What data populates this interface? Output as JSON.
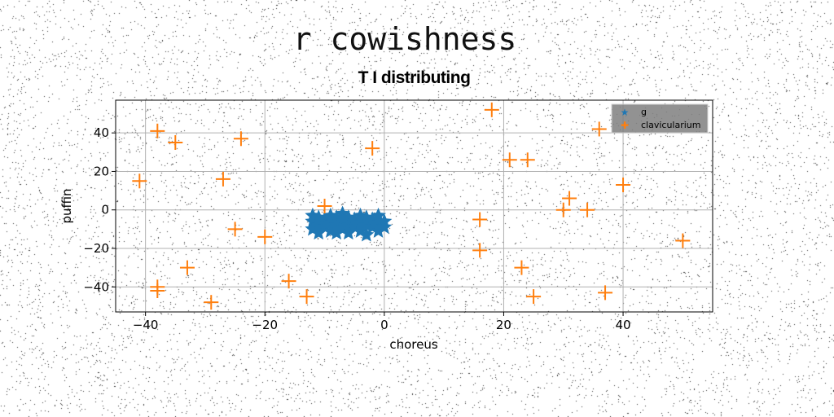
{
  "figure": {
    "suptitle": "r cowishness",
    "title": "T I distributing"
  },
  "chart_data": {
    "type": "scatter",
    "title": "T I distributing",
    "xlabel": "choreus",
    "ylabel": "puffin",
    "xlim": [
      -45,
      55
    ],
    "ylim": [
      -53,
      57
    ],
    "xticks": [
      -40,
      -20,
      0,
      20,
      40
    ],
    "yticks": [
      -40,
      -20,
      0,
      20,
      40
    ],
    "grid": true,
    "legend_position": "upper right",
    "series": [
      {
        "name": "g",
        "marker": "star",
        "color": "#1f77b4",
        "points": [
          [
            -12,
            -3
          ],
          [
            -12,
            -6
          ],
          [
            -12,
            -10
          ],
          [
            -11,
            -4
          ],
          [
            -11,
            -8
          ],
          [
            -11,
            -12
          ],
          [
            -10,
            -5
          ],
          [
            -10,
            -9
          ],
          [
            -9,
            -3
          ],
          [
            -9,
            -7
          ],
          [
            -9,
            -11
          ],
          [
            -8,
            -4
          ],
          [
            -8,
            -8
          ],
          [
            -8,
            -12
          ],
          [
            -7,
            -2
          ],
          [
            -7,
            -6
          ],
          [
            -7,
            -10
          ],
          [
            -6,
            -4
          ],
          [
            -6,
            -8
          ],
          [
            -6,
            -12
          ],
          [
            -5,
            -5
          ],
          [
            -5,
            -9
          ],
          [
            -4,
            -3
          ],
          [
            -4,
            -7
          ],
          [
            -4,
            -11
          ],
          [
            -3,
            -4
          ],
          [
            -3,
            -8
          ],
          [
            -3,
            -13
          ],
          [
            -2,
            -5
          ],
          [
            -2,
            -9
          ],
          [
            -1,
            -3
          ],
          [
            -1,
            -7
          ],
          [
            -1,
            -11
          ],
          [
            0,
            -6
          ],
          [
            0,
            -9
          ]
        ]
      },
      {
        "name": "clavicularium",
        "marker": "plus",
        "color": "#ff7f0e",
        "points": [
          [
            -38,
            41
          ],
          [
            -35,
            35
          ],
          [
            -24,
            37
          ],
          [
            -41,
            15
          ],
          [
            -27,
            16
          ],
          [
            -2,
            32
          ],
          [
            18,
            52
          ],
          [
            36,
            42
          ],
          [
            21,
            26
          ],
          [
            24,
            26
          ],
          [
            40,
            13
          ],
          [
            31,
            6
          ],
          [
            30,
            0
          ],
          [
            34,
            0
          ],
          [
            -10,
            2
          ],
          [
            16,
            -5
          ],
          [
            -25,
            -10
          ],
          [
            -20,
            -14
          ],
          [
            16,
            -21
          ],
          [
            50,
            -16
          ],
          [
            -33,
            -30
          ],
          [
            23,
            -30
          ],
          [
            -38,
            -40
          ],
          [
            -38,
            -42
          ],
          [
            -16,
            -37
          ],
          [
            -13,
            -45
          ],
          [
            -29,
            -48
          ],
          [
            25,
            -45
          ],
          [
            37,
            -43
          ]
        ]
      }
    ]
  }
}
